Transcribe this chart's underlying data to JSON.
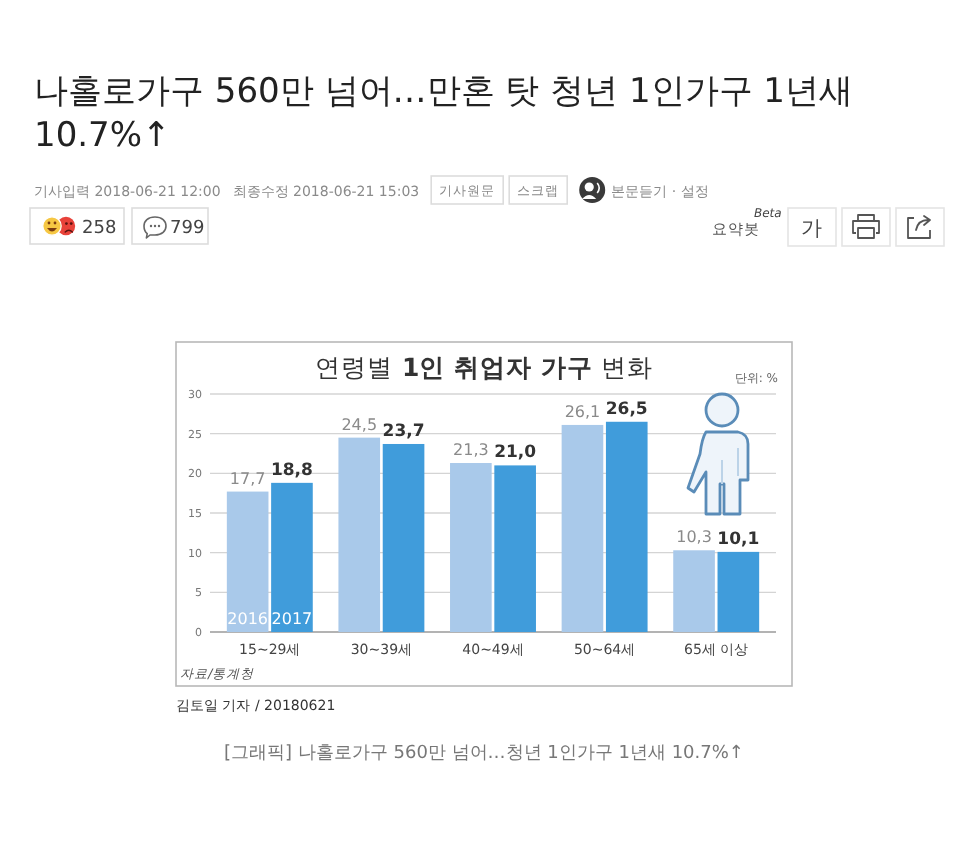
{
  "chart_data": {
    "type": "bar",
    "title": "연령별 1인 취업자 가구 변화",
    "ylabel": "단위: %",
    "categories": [
      "15~29세",
      "30~39세",
      "40~49세",
      "50~64세",
      "65세 이상"
    ],
    "series": [
      {
        "name": "2016",
        "color": "#a9c9ea",
        "values": [
          17.7,
          24.5,
          21.3,
          26.1,
          10.3
        ],
        "value_labels": [
          "17,7",
          "24,5",
          "21,3",
          "26,1",
          "10,3"
        ]
      },
      {
        "name": "2017",
        "color": "#409cdb",
        "values": [
          18.8,
          23.7,
          21.0,
          26.5,
          10.1
        ],
        "value_labels": [
          "18,8",
          "23,7",
          "21,0",
          "26,5",
          "10,1"
        ]
      }
    ],
    "ylim": [
      0,
      30
    ],
    "yticks": [
      0,
      5,
      10,
      15,
      20,
      25,
      30
    ],
    "grid": "y",
    "annotations": [
      "나홀로가구 560만 넘어…만혼 탓 청년 1인가구 1년새 10.7%↑",
      "기사입력 2018-06-21 12:00",
      "최종수정 2018-06-21 15:03",
      "기사원문",
      "스크랩",
      "본문듣기 · 설정",
      "258",
      "799",
      "요약봇",
      "Beta",
      "가",
      "자료/통계청",
      "김토일 기자 / 20180621",
      "[그래픽] 나홀로가구 560만 넘어…청년 1인가구 1년새 10.7%↑"
    ]
  }
}
